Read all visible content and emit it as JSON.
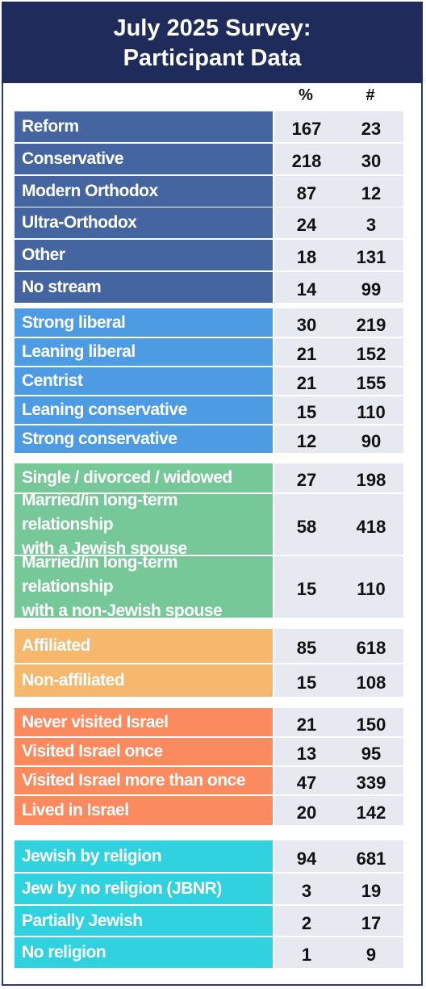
{
  "title": [
    "July 2025 Survey:",
    "Participant Data"
  ],
  "columns": {
    "pct": "%",
    "num": "#"
  },
  "sections": [
    {
      "name": "stream",
      "rows": [
        {
          "label": [
            "Reform"
          ],
          "pct": "167",
          "num": "23"
        },
        {
          "label": [
            "Conservative"
          ],
          "pct": "218",
          "num": "30"
        },
        {
          "label": [
            "Modern Orthodox"
          ],
          "pct": "87",
          "num": "12"
        },
        {
          "label": [
            "Ultra-Orthodox"
          ],
          "pct": "24",
          "num": "3"
        },
        {
          "label": [
            "Other"
          ],
          "pct": "18",
          "num": "131"
        },
        {
          "label": [
            "No stream"
          ],
          "pct": "14",
          "num": "99"
        }
      ]
    },
    {
      "name": "politics",
      "rows": [
        {
          "label": [
            "Strong liberal"
          ],
          "pct": "30",
          "num": "219"
        },
        {
          "label": [
            "Leaning liberal"
          ],
          "pct": "21",
          "num": "152"
        },
        {
          "label": [
            "Centrist"
          ],
          "pct": "21",
          "num": "155"
        },
        {
          "label": [
            "Leaning conservative"
          ],
          "pct": "15",
          "num": "110"
        },
        {
          "label": [
            "Strong conservative"
          ],
          "pct": "12",
          "num": "90"
        }
      ]
    },
    {
      "name": "relationship",
      "rows": [
        {
          "label": [
            "Single / divorced / widowed"
          ],
          "pct": "27",
          "num": "198"
        },
        {
          "label": [
            "Married/in long-term relationship",
            "with a Jewish spouse"
          ],
          "pct": "58",
          "num": "418"
        },
        {
          "label": [
            "Married/in long-term relationship",
            "with a non-Jewish spouse"
          ],
          "pct": "15",
          "num": "110"
        }
      ]
    },
    {
      "name": "affiliation",
      "rows": [
        {
          "label": [
            "Affiliated"
          ],
          "pct": "85",
          "num": "618"
        },
        {
          "label": [
            "Non-affiliated"
          ],
          "pct": "15",
          "num": "108"
        }
      ]
    },
    {
      "name": "israel",
      "rows": [
        {
          "label": [
            "Never visited Israel"
          ],
          "pct": "21",
          "num": "150"
        },
        {
          "label": [
            "Visited Israel once"
          ],
          "pct": "13",
          "num": "95"
        },
        {
          "label": [
            "Visited Israel more than once"
          ],
          "pct": "47",
          "num": "339"
        },
        {
          "label": [
            "Lived in Israel"
          ],
          "pct": "20",
          "num": "142"
        }
      ]
    },
    {
      "name": "identity",
      "rows": [
        {
          "label": [
            "Jewish by religion"
          ],
          "pct": "94",
          "num": "681"
        },
        {
          "label": [
            "Jew by no religion (JBNR)"
          ],
          "pct": "3",
          "num": "19"
        },
        {
          "label": [
            "Partially Jewish"
          ],
          "pct": "2",
          "num": "17"
        },
        {
          "label": [
            "No religion"
          ],
          "pct": "1",
          "num": "9"
        }
      ]
    }
  ]
}
